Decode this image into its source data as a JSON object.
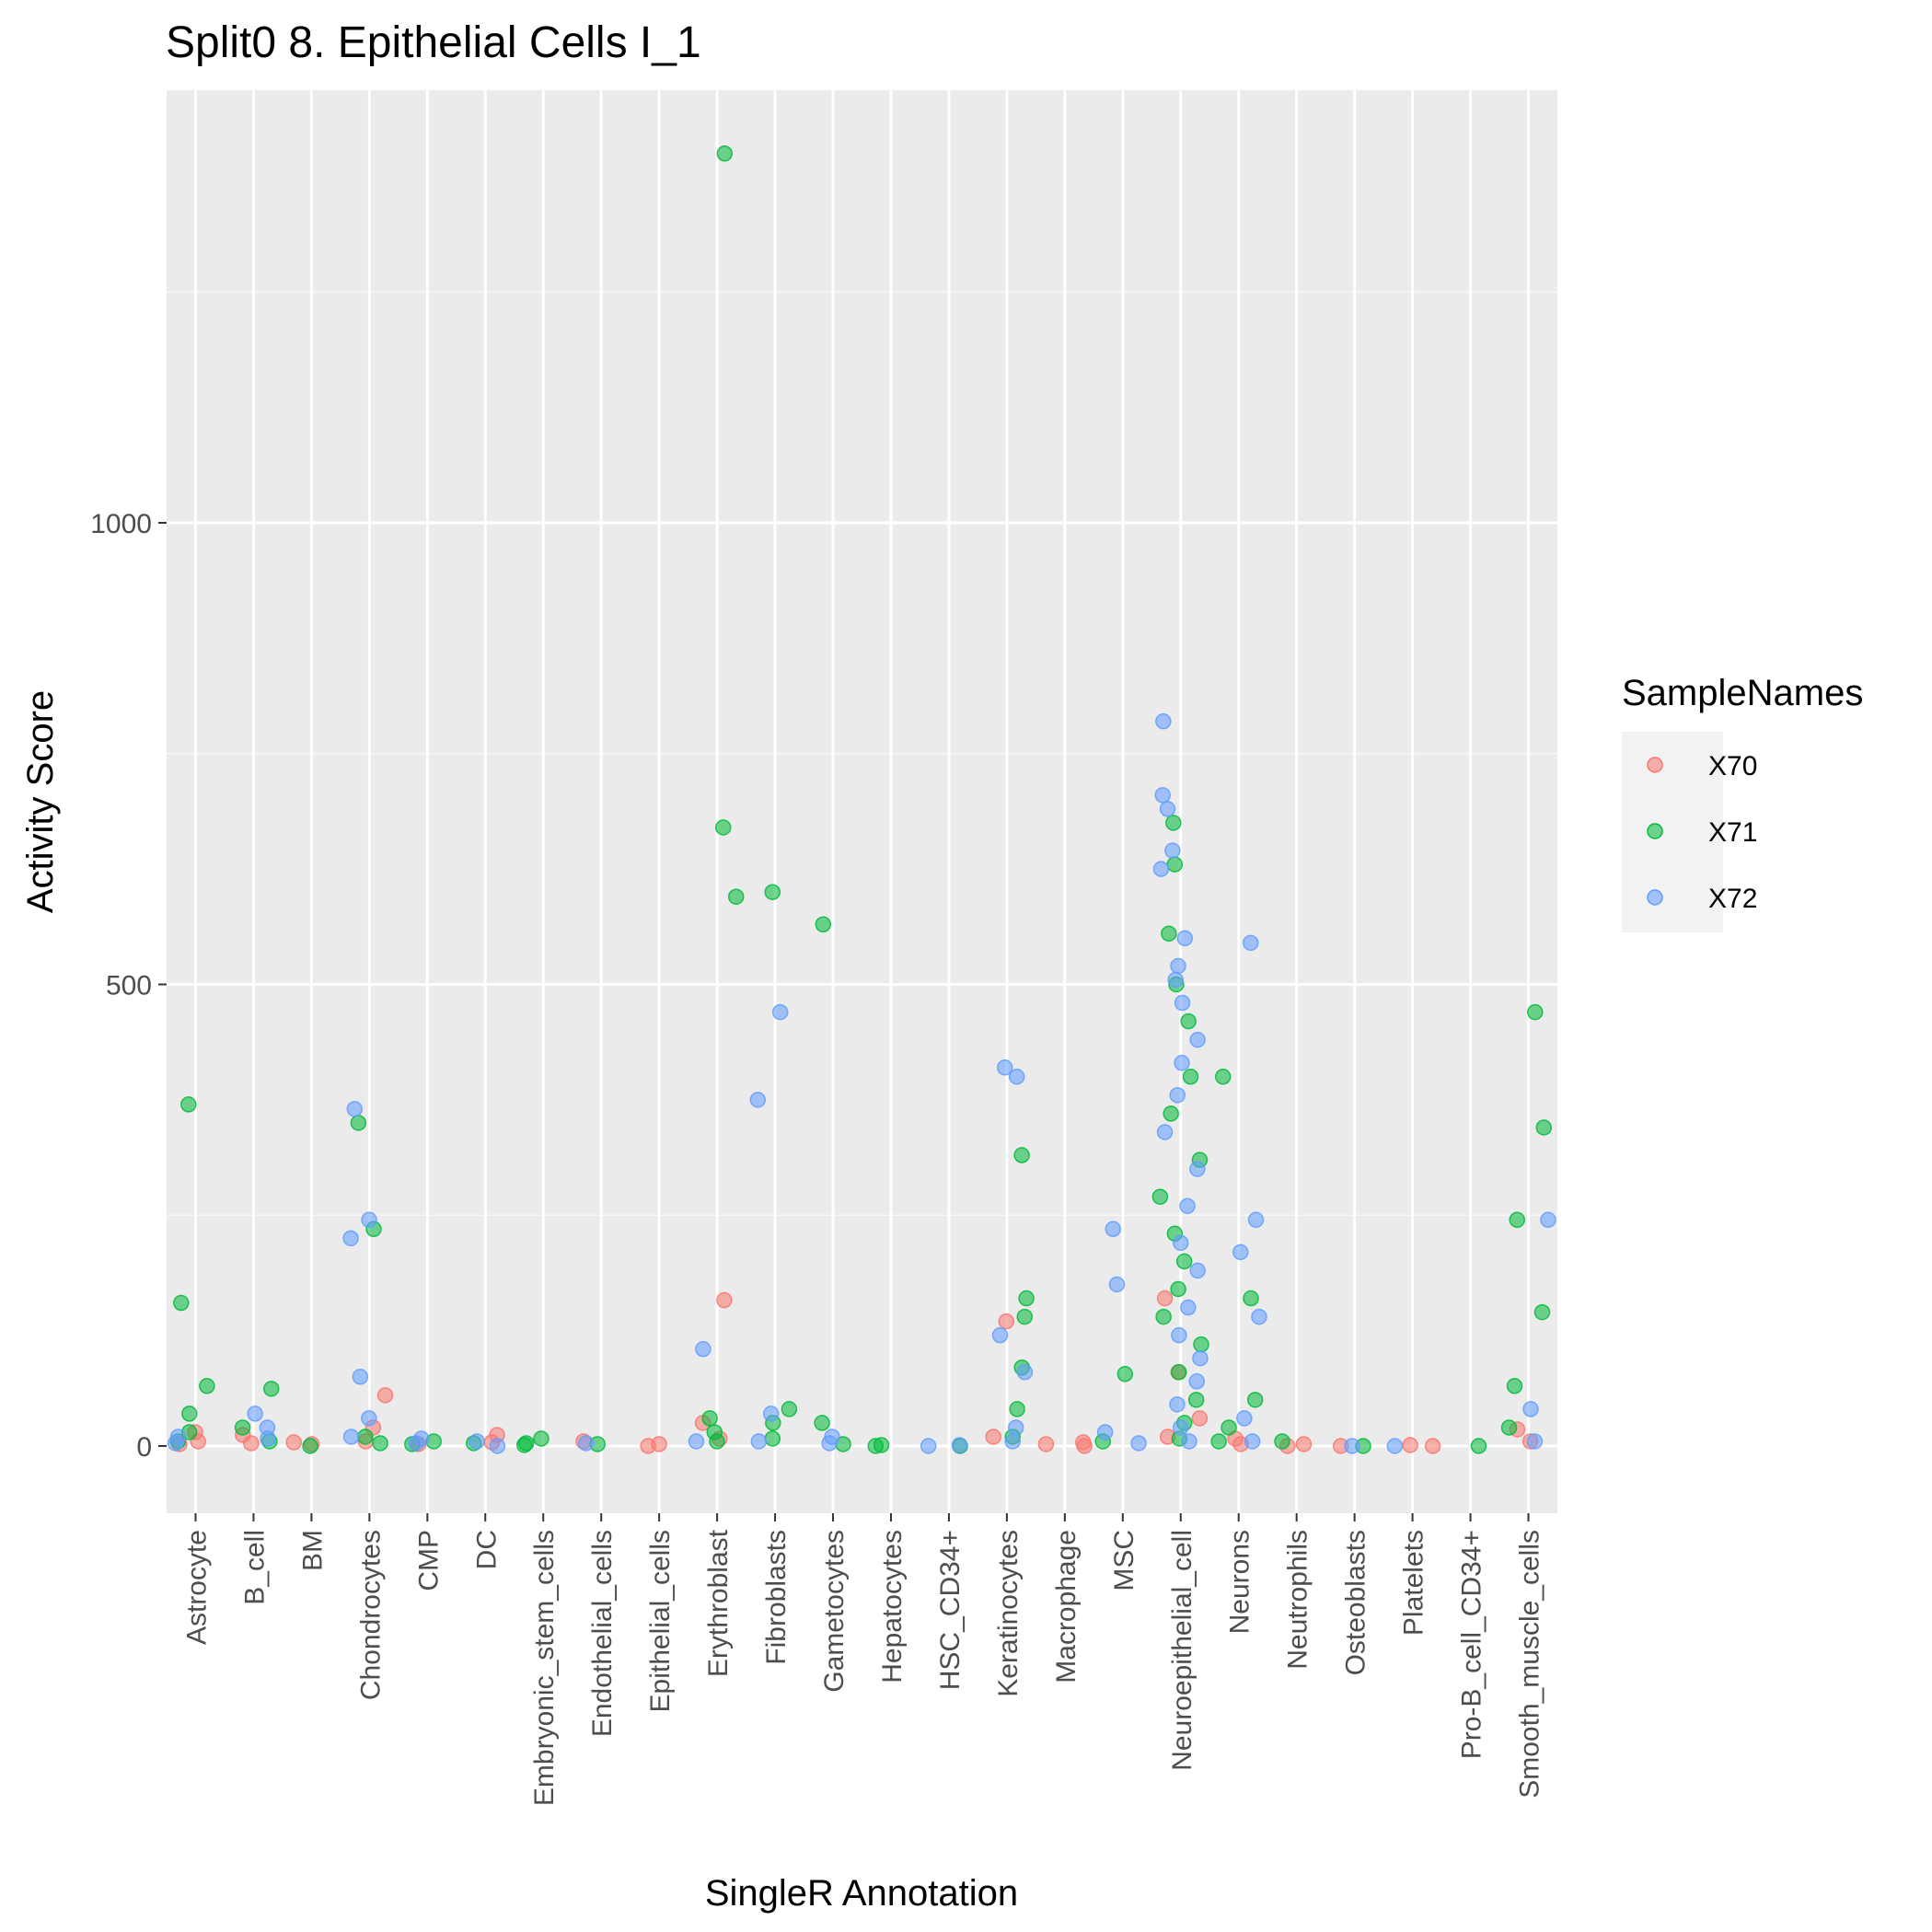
{
  "chart_data": {
    "type": "scatter",
    "subtype": "jitter",
    "title": "Split0 8. Epithelial Cells I_1",
    "xlabel": "SingleR Annotation",
    "ylabel": "Activity Score",
    "categories": [
      "Astrocyte",
      "B_cell",
      "BM",
      "Chondrocytes",
      "CMP",
      "DC",
      "Embryonic_stem_cells",
      "Endothelial_cells",
      "Epithelial_cells",
      "Erythroblast",
      "Fibroblasts",
      "Gametocytes",
      "Hepatocytes",
      "HSC_CD34+",
      "Keratinocytes",
      "Macrophage",
      "MSC",
      "Neuroepithelial_cell",
      "Neurons",
      "Neutrophils",
      "Osteoblasts",
      "Platelets",
      "Pro-B_cell_CD34+",
      "Smooth_muscle_cells"
    ],
    "y_ticks": [
      0,
      500,
      1000
    ],
    "y_tick_labels": [
      "0",
      "500",
      "1000"
    ],
    "ylim": [
      -70,
      1470
    ],
    "grid": true,
    "background": "#ebebeb",
    "legend": {
      "title": "SampleNames",
      "position": "right",
      "entries": [
        {
          "label": "X70",
          "color": "#f8766d"
        },
        {
          "label": "X71",
          "color": "#00ba38"
        },
        {
          "label": "X72",
          "color": "#619cff"
        }
      ]
    },
    "series": [
      {
        "name": "X70",
        "color": "#f8766d",
        "points": [
          {
            "category": "Astrocyte",
            "y": 15
          },
          {
            "category": "Astrocyte",
            "y": 5
          },
          {
            "category": "Astrocyte",
            "y": 2
          },
          {
            "category": "B_cell",
            "y": 12
          },
          {
            "category": "B_cell",
            "y": 3
          },
          {
            "category": "BM",
            "y": 2
          },
          {
            "category": "BM",
            "y": 4
          },
          {
            "category": "Chondrocytes",
            "y": 55
          },
          {
            "category": "Chondrocytes",
            "y": 20
          },
          {
            "category": "Chondrocytes",
            "y": 5
          },
          {
            "category": "CMP",
            "y": 2
          },
          {
            "category": "DC",
            "y": 12
          },
          {
            "category": "DC",
            "y": 4
          },
          {
            "category": "Endothelial_cells",
            "y": 5
          },
          {
            "category": "Epithelial_cells",
            "y": 2
          },
          {
            "category": "Epithelial_cells",
            "y": 0
          },
          {
            "category": "Erythroblast",
            "y": 158
          },
          {
            "category": "Erythroblast",
            "y": 25
          },
          {
            "category": "Erythroblast",
            "y": 8
          },
          {
            "category": "Keratinocytes",
            "y": 135
          },
          {
            "category": "Keratinocytes",
            "y": 10
          },
          {
            "category": "Macrophage",
            "y": 2
          },
          {
            "category": "Macrophage",
            "y": 4
          },
          {
            "category": "Macrophage",
            "y": 0
          },
          {
            "category": "Neuroepithelial_cell",
            "y": 160
          },
          {
            "category": "Neuroepithelial_cell",
            "y": 80
          },
          {
            "category": "Neuroepithelial_cell",
            "y": 30
          },
          {
            "category": "Neuroepithelial_cell",
            "y": 10
          },
          {
            "category": "Neurons",
            "y": 8
          },
          {
            "category": "Neurons",
            "y": 2
          },
          {
            "category": "Neutrophils",
            "y": 2
          },
          {
            "category": "Neutrophils",
            "y": 0
          },
          {
            "category": "Osteoblasts",
            "y": 0
          },
          {
            "category": "Platelets",
            "y": 0
          },
          {
            "category": "Platelets",
            "y": 1
          },
          {
            "category": "Smooth_muscle_cells",
            "y": 18
          },
          {
            "category": "Smooth_muscle_cells",
            "y": 5
          }
        ]
      },
      {
        "name": "X71",
        "color": "#00ba38",
        "points": [
          {
            "category": "Astrocyte",
            "y": 370
          },
          {
            "category": "Astrocyte",
            "y": 155
          },
          {
            "category": "Astrocyte",
            "y": 65
          },
          {
            "category": "Astrocyte",
            "y": 35
          },
          {
            "category": "Astrocyte",
            "y": 15
          },
          {
            "category": "Astrocyte",
            "y": 5
          },
          {
            "category": "B_cell",
            "y": 62
          },
          {
            "category": "B_cell",
            "y": 20
          },
          {
            "category": "B_cell",
            "y": 5
          },
          {
            "category": "BM",
            "y": 0
          },
          {
            "category": "Chondrocytes",
            "y": 350
          },
          {
            "category": "Chondrocytes",
            "y": 235
          },
          {
            "category": "Chondrocytes",
            "y": 10
          },
          {
            "category": "Chondrocytes",
            "y": 3
          },
          {
            "category": "CMP",
            "y": 5
          },
          {
            "category": "CMP",
            "y": 2
          },
          {
            "category": "DC",
            "y": 3
          },
          {
            "category": "Embryonic_stem_cells",
            "y": 8
          },
          {
            "category": "Embryonic_stem_cells",
            "y": 3
          },
          {
            "category": "Embryonic_stem_cells",
            "y": 1
          },
          {
            "category": "Endothelial_cells",
            "y": 2
          },
          {
            "category": "Erythroblast",
            "y": 1400
          },
          {
            "category": "Erythroblast",
            "y": 670
          },
          {
            "category": "Erythroblast",
            "y": 595
          },
          {
            "category": "Erythroblast",
            "y": 30
          },
          {
            "category": "Erythroblast",
            "y": 15
          },
          {
            "category": "Erythroblast",
            "y": 5
          },
          {
            "category": "Fibroblasts",
            "y": 600
          },
          {
            "category": "Fibroblasts",
            "y": 40
          },
          {
            "category": "Fibroblasts",
            "y": 25
          },
          {
            "category": "Fibroblasts",
            "y": 8
          },
          {
            "category": "Gametocytes",
            "y": 565
          },
          {
            "category": "Gametocytes",
            "y": 25
          },
          {
            "category": "Gametocytes",
            "y": 2
          },
          {
            "category": "Hepatocytes",
            "y": 0
          },
          {
            "category": "Hepatocytes",
            "y": 1
          },
          {
            "category": "HSC_CD34+",
            "y": 0
          },
          {
            "category": "Keratinocytes",
            "y": 315
          },
          {
            "category": "Keratinocytes",
            "y": 160
          },
          {
            "category": "Keratinocytes",
            "y": 140
          },
          {
            "category": "Keratinocytes",
            "y": 85
          },
          {
            "category": "Keratinocytes",
            "y": 40
          },
          {
            "category": "Keratinocytes",
            "y": 10
          },
          {
            "category": "MSC",
            "y": 78
          },
          {
            "category": "MSC",
            "y": 5
          },
          {
            "category": "Neuroepithelial_cell",
            "y": 675
          },
          {
            "category": "Neuroepithelial_cell",
            "y": 630
          },
          {
            "category": "Neuroepithelial_cell",
            "y": 555
          },
          {
            "category": "Neuroepithelial_cell",
            "y": 500
          },
          {
            "category": "Neuroepithelial_cell",
            "y": 460
          },
          {
            "category": "Neuroepithelial_cell",
            "y": 400
          },
          {
            "category": "Neuroepithelial_cell",
            "y": 360
          },
          {
            "category": "Neuroepithelial_cell",
            "y": 310
          },
          {
            "category": "Neuroepithelial_cell",
            "y": 270
          },
          {
            "category": "Neuroepithelial_cell",
            "y": 230
          },
          {
            "category": "Neuroepithelial_cell",
            "y": 200
          },
          {
            "category": "Neuroepithelial_cell",
            "y": 170
          },
          {
            "category": "Neuroepithelial_cell",
            "y": 140
          },
          {
            "category": "Neuroepithelial_cell",
            "y": 110
          },
          {
            "category": "Neuroepithelial_cell",
            "y": 80
          },
          {
            "category": "Neuroepithelial_cell",
            "y": 50
          },
          {
            "category": "Neuroepithelial_cell",
            "y": 25
          },
          {
            "category": "Neuroepithelial_cell",
            "y": 8
          },
          {
            "category": "Neurons",
            "y": 400
          },
          {
            "category": "Neurons",
            "y": 160
          },
          {
            "category": "Neurons",
            "y": 50
          },
          {
            "category": "Neurons",
            "y": 20
          },
          {
            "category": "Neurons",
            "y": 5
          },
          {
            "category": "Neutrophils",
            "y": 5
          },
          {
            "category": "Osteoblasts",
            "y": 0
          },
          {
            "category": "Pro-B_cell_CD34+",
            "y": 0
          },
          {
            "category": "Smooth_muscle_cells",
            "y": 470
          },
          {
            "category": "Smooth_muscle_cells",
            "y": 345
          },
          {
            "category": "Smooth_muscle_cells",
            "y": 245
          },
          {
            "category": "Smooth_muscle_cells",
            "y": 145
          },
          {
            "category": "Smooth_muscle_cells",
            "y": 65
          },
          {
            "category": "Smooth_muscle_cells",
            "y": 20
          }
        ]
      },
      {
        "name": "X72",
        "color": "#619cff",
        "points": [
          {
            "category": "Astrocyte",
            "y": 10
          },
          {
            "category": "Astrocyte",
            "y": 3
          },
          {
            "category": "B_cell",
            "y": 35
          },
          {
            "category": "B_cell",
            "y": 20
          },
          {
            "category": "B_cell",
            "y": 8
          },
          {
            "category": "Chondrocytes",
            "y": 365
          },
          {
            "category": "Chondrocytes",
            "y": 245
          },
          {
            "category": "Chondrocytes",
            "y": 225
          },
          {
            "category": "Chondrocytes",
            "y": 75
          },
          {
            "category": "Chondrocytes",
            "y": 30
          },
          {
            "category": "Chondrocytes",
            "y": 10
          },
          {
            "category": "CMP",
            "y": 8
          },
          {
            "category": "CMP",
            "y": 3
          },
          {
            "category": "DC",
            "y": 5
          },
          {
            "category": "DC",
            "y": 0
          },
          {
            "category": "Endothelial_cells",
            "y": 3
          },
          {
            "category": "Erythroblast",
            "y": 105
          },
          {
            "category": "Erythroblast",
            "y": 5
          },
          {
            "category": "Fibroblasts",
            "y": 470
          },
          {
            "category": "Fibroblasts",
            "y": 375
          },
          {
            "category": "Fibroblasts",
            "y": 35
          },
          {
            "category": "Fibroblasts",
            "y": 5
          },
          {
            "category": "Gametocytes",
            "y": 10
          },
          {
            "category": "Gametocytes",
            "y": 3
          },
          {
            "category": "HSC_CD34+",
            "y": 0
          },
          {
            "category": "HSC_CD34+",
            "y": 1
          },
          {
            "category": "Keratinocytes",
            "y": 410
          },
          {
            "category": "Keratinocytes",
            "y": 400
          },
          {
            "category": "Keratinocytes",
            "y": 120
          },
          {
            "category": "Keratinocytes",
            "y": 80
          },
          {
            "category": "Keratinocytes",
            "y": 20
          },
          {
            "category": "Keratinocytes",
            "y": 5
          },
          {
            "category": "MSC",
            "y": 235
          },
          {
            "category": "MSC",
            "y": 175
          },
          {
            "category": "MSC",
            "y": 15
          },
          {
            "category": "MSC",
            "y": 3
          },
          {
            "category": "Neuroepithelial_cell",
            "y": 785
          },
          {
            "category": "Neuroepithelial_cell",
            "y": 705
          },
          {
            "category": "Neuroepithelial_cell",
            "y": 690
          },
          {
            "category": "Neuroepithelial_cell",
            "y": 645
          },
          {
            "category": "Neuroepithelial_cell",
            "y": 625
          },
          {
            "category": "Neuroepithelial_cell",
            "y": 550
          },
          {
            "category": "Neuroepithelial_cell",
            "y": 520
          },
          {
            "category": "Neuroepithelial_cell",
            "y": 505
          },
          {
            "category": "Neuroepithelial_cell",
            "y": 480
          },
          {
            "category": "Neuroepithelial_cell",
            "y": 440
          },
          {
            "category": "Neuroepithelial_cell",
            "y": 415
          },
          {
            "category": "Neuroepithelial_cell",
            "y": 380
          },
          {
            "category": "Neuroepithelial_cell",
            "y": 340
          },
          {
            "category": "Neuroepithelial_cell",
            "y": 300
          },
          {
            "category": "Neuroepithelial_cell",
            "y": 260
          },
          {
            "category": "Neuroepithelial_cell",
            "y": 220
          },
          {
            "category": "Neuroepithelial_cell",
            "y": 190
          },
          {
            "category": "Neuroepithelial_cell",
            "y": 150
          },
          {
            "category": "Neuroepithelial_cell",
            "y": 120
          },
          {
            "category": "Neuroepithelial_cell",
            "y": 95
          },
          {
            "category": "Neuroepithelial_cell",
            "y": 70
          },
          {
            "category": "Neuroepithelial_cell",
            "y": 45
          },
          {
            "category": "Neuroepithelial_cell",
            "y": 20
          },
          {
            "category": "Neuroepithelial_cell",
            "y": 5
          },
          {
            "category": "Neurons",
            "y": 545
          },
          {
            "category": "Neurons",
            "y": 245
          },
          {
            "category": "Neurons",
            "y": 210
          },
          {
            "category": "Neurons",
            "y": 140
          },
          {
            "category": "Neurons",
            "y": 30
          },
          {
            "category": "Neurons",
            "y": 5
          },
          {
            "category": "Osteoblasts",
            "y": 0
          },
          {
            "category": "Platelets",
            "y": 0
          },
          {
            "category": "Smooth_muscle_cells",
            "y": 245
          },
          {
            "category": "Smooth_muscle_cells",
            "y": 40
          },
          {
            "category": "Smooth_muscle_cells",
            "y": 5
          }
        ]
      }
    ]
  }
}
